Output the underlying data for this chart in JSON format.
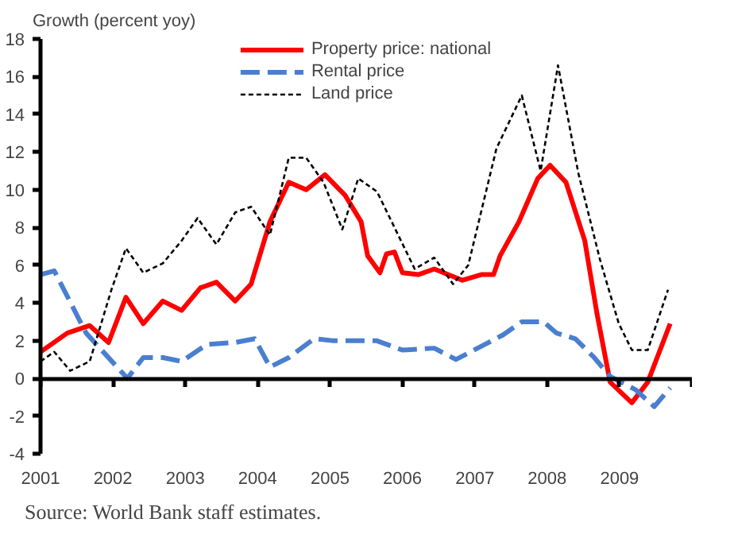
{
  "chart_data": {
    "type": "line",
    "ylabel": "Growth (percent yoy)",
    "annotations": [
      "Source: World Bank staff estimates."
    ],
    "xlim": [
      2001,
      2010
    ],
    "xticks": [
      2001,
      2002,
      2003,
      2004,
      2005,
      2006,
      2007,
      2008,
      2009,
      {
        "value": 2010,
        "label": null
      }
    ],
    "ylim": [
      -4,
      18
    ],
    "yticks": [
      -4,
      -2,
      0,
      2,
      4,
      6,
      8,
      10,
      12,
      14,
      16,
      18
    ],
    "legend": "top",
    "series": [
      {
        "name": "Property price: national",
        "color": "#ff0000",
        "line_style": "solid",
        "x": [
          2001.0,
          2001.37,
          2001.68,
          2001.94,
          2002.18,
          2002.42,
          2002.69,
          2002.95,
          2003.21,
          2003.43,
          2003.69,
          2003.91,
          2004.17,
          2004.43,
          2004.67,
          2004.93,
          2005.21,
          2005.43,
          2005.52,
          2005.69,
          2005.78,
          2005.89,
          2006.0,
          2006.22,
          2006.44,
          2006.83,
          2007.09,
          2007.26,
          2007.35,
          2007.61,
          2007.87,
          2008.04,
          2008.26,
          2008.52,
          2008.69,
          2008.87,
          2009.17,
          2009.39,
          2009.7
        ],
        "values": [
          1.4,
          2.4,
          2.8,
          1.9,
          4.3,
          2.9,
          4.1,
          3.6,
          4.8,
          5.1,
          4.1,
          5.0,
          8.3,
          10.4,
          10.0,
          10.8,
          9.7,
          8.3,
          6.5,
          5.6,
          6.6,
          6.7,
          5.6,
          5.5,
          5.8,
          5.2,
          5.5,
          5.5,
          6.5,
          8.3,
          10.6,
          11.3,
          10.4,
          7.3,
          3.4,
          -0.2,
          -1.3,
          -0.2,
          2.9
        ]
      },
      {
        "name": "Rental price",
        "color": "#4a7fd0",
        "line_style": "dashed",
        "x": [
          2001.0,
          2001.19,
          2001.63,
          2002.2,
          2002.42,
          2002.69,
          2002.95,
          2003.3,
          2003.69,
          2003.96,
          2004.17,
          2004.43,
          2004.78,
          2005.03,
          2005.29,
          2005.64,
          2006.0,
          2006.44,
          2006.74,
          2007.04,
          2007.39,
          2007.65,
          2007.95,
          2008.13,
          2008.39,
          2008.65,
          2008.87,
          2009.22,
          2009.48,
          2009.7
        ],
        "values": [
          5.5,
          5.7,
          2.4,
          0.0,
          1.1,
          1.1,
          0.9,
          1.8,
          1.9,
          2.1,
          0.6,
          1.1,
          2.1,
          2.0,
          2.0,
          2.0,
          1.5,
          1.6,
          1.0,
          1.6,
          2.3,
          3.0,
          3.0,
          2.4,
          2.1,
          1.1,
          0.1,
          -0.6,
          -1.5,
          -0.5
        ]
      },
      {
        "name": "Land price",
        "color": "#000000",
        "line_style": "dotted",
        "x": [
          2001.0,
          2001.19,
          2001.41,
          2001.68,
          2001.98,
          2002.18,
          2002.42,
          2002.69,
          2002.95,
          2003.17,
          2003.43,
          2003.69,
          2003.91,
          2004.17,
          2004.43,
          2004.67,
          2004.91,
          2005.17,
          2005.39,
          2005.65,
          2006.17,
          2006.44,
          2006.7,
          2006.91,
          2007.3,
          2007.65,
          2007.91,
          2008.15,
          2008.43,
          2008.73,
          2008.99,
          2009.17,
          2009.39,
          2009.67
        ],
        "values": [
          0.9,
          1.4,
          0.4,
          0.9,
          4.7,
          6.9,
          5.6,
          6.1,
          7.3,
          8.5,
          7.1,
          8.8,
          9.1,
          7.6,
          11.7,
          11.7,
          10.4,
          7.9,
          10.6,
          9.9,
          5.8,
          6.4,
          5.0,
          6.0,
          12.2,
          15.0,
          11.0,
          16.6,
          10.9,
          6.3,
          2.9,
          1.5,
          1.5,
          4.7
        ]
      }
    ]
  }
}
